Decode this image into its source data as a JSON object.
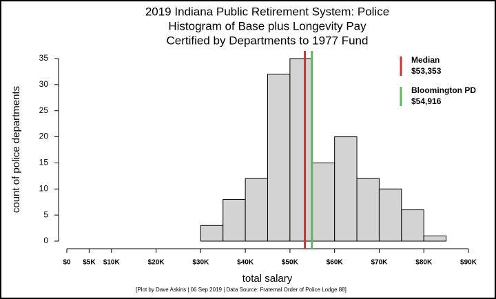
{
  "chart_data": {
    "type": "histogram",
    "title": [
      "2019 Indiana Public Retirement System: Police",
      "Histogram of Base plus Longevity Pay",
      "Certified by Departments to 1977 Fund"
    ],
    "xlabel": "total salary",
    "ylabel": "count of police departments",
    "caption": "[Plot by Dave Askins | 06 Sep 2019 | Data Source: Fraternal Order of Police Lodge 88]",
    "bins": [
      0,
      5000,
      10000,
      15000,
      20000,
      25000,
      30000,
      35000,
      40000,
      45000,
      50000,
      55000,
      60000,
      65000,
      70000,
      75000,
      80000,
      85000,
      90000
    ],
    "values": [
      0,
      0,
      0,
      0,
      0,
      0,
      3,
      8,
      12,
      32,
      35,
      15,
      20,
      12,
      10,
      6,
      1,
      0
    ],
    "color": "#d3d3d3",
    "xlim": [
      0,
      90000
    ],
    "ylim": [
      0,
      35
    ],
    "xticks": [
      {
        "value": 0,
        "label": "$0"
      },
      {
        "value": 5000,
        "label": "$5K"
      },
      {
        "value": 10000,
        "label": "$10K"
      },
      {
        "value": 20000,
        "label": "$20K"
      },
      {
        "value": 30000,
        "label": "$30K"
      },
      {
        "value": 40000,
        "label": "$40K"
      },
      {
        "value": 50000,
        "label": "$50K"
      },
      {
        "value": 60000,
        "label": "$60K"
      },
      {
        "value": 70000,
        "label": "$70K"
      },
      {
        "value": 80000,
        "label": "$80K"
      },
      {
        "value": 90000,
        "label": "$90K"
      }
    ],
    "yticks": [
      0,
      5,
      10,
      15,
      20,
      25,
      30,
      35
    ],
    "reference_lines": [
      {
        "name": "Median",
        "value": 53353,
        "value_label": "$53,353",
        "color": "#d0312d"
      },
      {
        "name": "Bloomington PD",
        "value": 54916,
        "value_label": "$54,916",
        "color": "#5cb85c"
      }
    ]
  }
}
